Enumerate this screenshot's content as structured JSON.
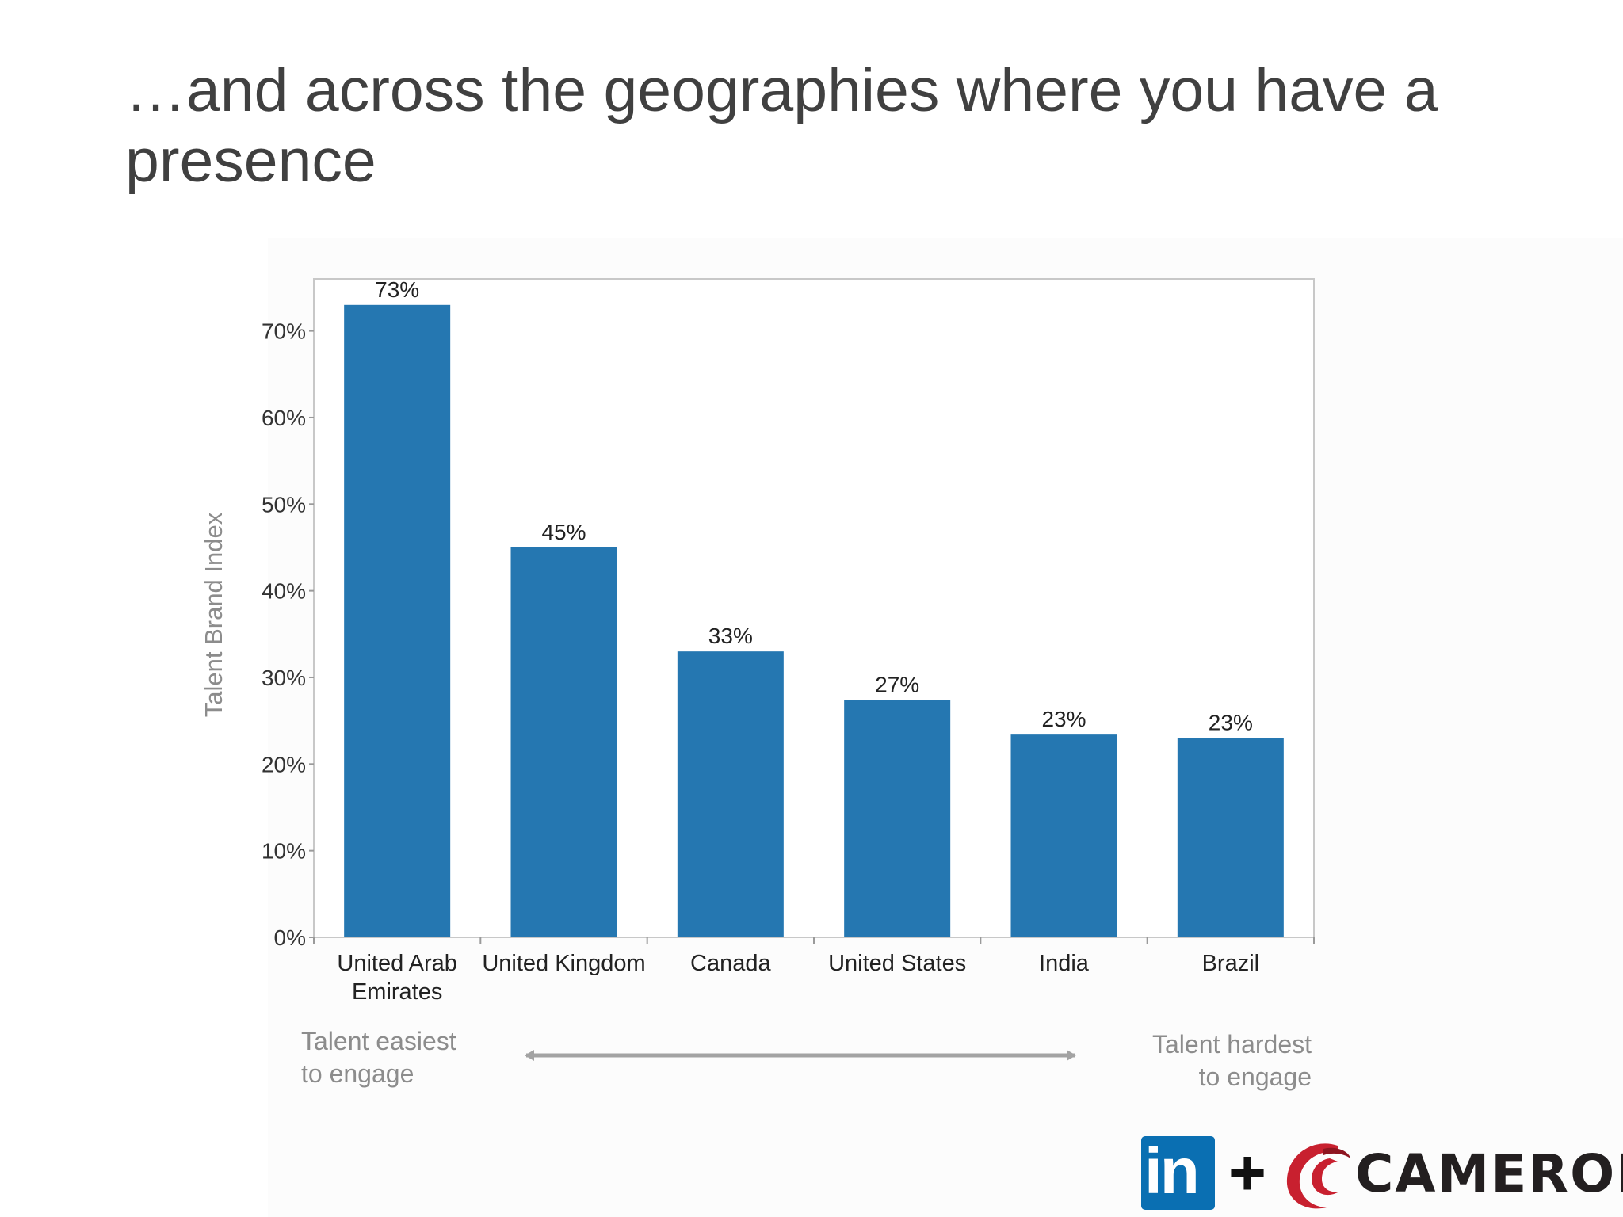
{
  "slide": {
    "title": "…and across the geographies where you have a presence"
  },
  "chart_data": {
    "type": "bar",
    "categories": [
      "United Arab Emirates",
      "United Kingdom",
      "Canada",
      "United States",
      "India",
      "Brazil"
    ],
    "category_lines": [
      [
        "United Arab",
        "Emirates"
      ],
      [
        "United Kingdom"
      ],
      [
        "Canada"
      ],
      [
        "United States"
      ],
      [
        "India"
      ],
      [
        "Brazil"
      ]
    ],
    "values": [
      73,
      45,
      33,
      27.4,
      23.4,
      23
    ],
    "data_labels": [
      "73%",
      "45%",
      "33%",
      "27%",
      "23%",
      "23%"
    ],
    "title": "",
    "xlabel": "",
    "ylabel": "Talent Brand Index",
    "ylim": [
      0,
      76
    ],
    "yticks": [
      0,
      10,
      20,
      30,
      40,
      50,
      60,
      70
    ],
    "ytick_labels": [
      "0%",
      "10%",
      "20%",
      "30%",
      "40%",
      "50%",
      "60%",
      "70%"
    ],
    "bar_color": "#2577b1",
    "grid": false,
    "legend": "none"
  },
  "annotations": {
    "left_line1": "Talent easiest",
    "left_line2": "to engage",
    "right_line1": "Talent hardest",
    "right_line2": "to engage",
    "arrow": "double-headed-arrow",
    "arrow_color": "#a3a3a3"
  },
  "logos": {
    "linkedin": "in",
    "plus": "+",
    "cameron": "CAMERON",
    "linkedin_color": "#0a6fb2",
    "cameron_mark_color": "#c8202f"
  }
}
